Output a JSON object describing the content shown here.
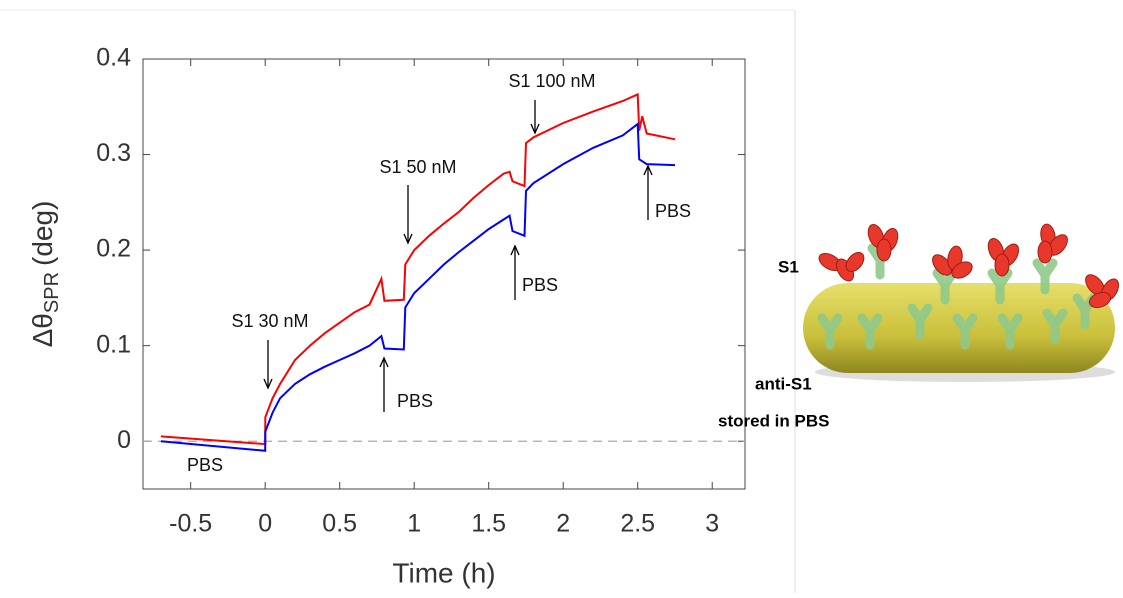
{
  "chart_data": {
    "type": "line",
    "xlabel": "Time (h)",
    "ylabel": {
      "main": "Δθ",
      "sub": "SPR",
      "unit": "(deg)"
    },
    "x": [
      -0.7,
      0,
      0.001,
      0.05,
      0.1,
      0.2,
      0.3,
      0.4,
      0.5,
      0.6,
      0.7,
      0.78,
      0.8,
      0.93,
      0.94,
      1.0,
      1.1,
      1.2,
      1.3,
      1.4,
      1.5,
      1.6,
      1.64,
      1.66,
      1.74,
      1.75,
      1.8,
      2.0,
      2.2,
      2.4,
      2.5,
      2.51,
      2.53,
      2.56,
      2.75
    ],
    "series": [
      {
        "color": "#ff0000",
        "values": [
          0.005,
          -0.003,
          0.025,
          0.045,
          0.06,
          0.085,
          0.1,
          0.113,
          0.124,
          0.135,
          0.143,
          0.17,
          0.147,
          0.148,
          0.185,
          0.2,
          0.215,
          0.228,
          0.24,
          0.255,
          0.268,
          0.28,
          0.282,
          0.272,
          0.267,
          0.312,
          0.318,
          0.333,
          0.345,
          0.356,
          0.363,
          0.325,
          0.34,
          0.322,
          0.316
        ]
      },
      {
        "color": "#0000ff",
        "values": [
          0.0,
          -0.01,
          0.01,
          0.03,
          0.045,
          0.06,
          0.07,
          0.078,
          0.085,
          0.092,
          0.1,
          0.11,
          0.097,
          0.096,
          0.14,
          0.155,
          0.17,
          0.185,
          0.198,
          0.21,
          0.222,
          0.232,
          0.236,
          0.22,
          0.215,
          0.262,
          0.27,
          0.29,
          0.307,
          0.32,
          0.332,
          0.295,
          0.293,
          0.29,
          0.289
        ]
      }
    ],
    "hline": 0,
    "xlim": [
      -0.82,
      3.22
    ],
    "xticks": [
      -0.5,
      0,
      0.5,
      1,
      1.5,
      2,
      2.5,
      3
    ],
    "ylim": [
      -0.05,
      0.4
    ],
    "yticks": [
      0,
      0.1,
      0.2,
      0.3,
      0.4
    ],
    "annotations": [
      "S1 30 nM",
      "PBS",
      "S1 50 nM",
      "PBS",
      "S1 100 nM",
      "PBS",
      "PBS"
    ]
  },
  "illustration": {
    "labels": [
      "S1",
      "anti-S1",
      "stored in PBS"
    ]
  }
}
